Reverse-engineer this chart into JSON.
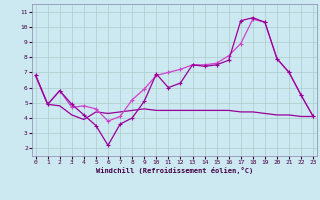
{
  "xlabel": "Windchill (Refroidissement éolien,°C)",
  "x_ticks": [
    0,
    1,
    2,
    3,
    4,
    5,
    6,
    7,
    8,
    9,
    10,
    11,
    12,
    13,
    14,
    15,
    16,
    17,
    18,
    19,
    20,
    21,
    22,
    23
  ],
  "y_ticks": [
    2,
    3,
    4,
    5,
    6,
    7,
    8,
    9,
    10,
    11
  ],
  "xlim": [
    -0.3,
    23.3
  ],
  "ylim": [
    1.5,
    11.5
  ],
  "bg_color": "#cce8f0",
  "grid_color": "#aacccc",
  "line_color": "#990099",
  "line_color2": "#cc44cc",
  "line1_x": [
    0,
    1,
    2,
    3,
    4,
    5,
    6,
    7,
    8,
    9,
    10,
    11,
    12,
    13,
    14,
    15,
    16,
    17,
    18,
    19,
    20,
    21,
    22,
    23
  ],
  "line1_y": [
    6.8,
    4.9,
    5.8,
    4.9,
    4.2,
    3.5,
    2.2,
    3.6,
    4.0,
    5.1,
    6.9,
    6.0,
    6.3,
    7.5,
    7.4,
    7.5,
    7.8,
    10.4,
    10.6,
    10.3,
    7.9,
    7.0,
    5.5,
    4.1
  ],
  "line2_x": [
    0,
    1,
    2,
    3,
    4,
    5,
    6,
    7,
    8,
    9,
    10,
    11,
    12,
    13,
    14,
    15,
    16,
    17,
    18,
    19,
    20,
    21,
    22,
    23
  ],
  "line2_y": [
    6.8,
    4.9,
    5.8,
    4.7,
    4.8,
    4.6,
    3.8,
    4.1,
    5.2,
    5.9,
    6.8,
    7.0,
    7.2,
    7.5,
    7.5,
    7.6,
    8.1,
    8.9,
    10.5,
    10.3,
    7.9,
    7.0,
    5.5,
    4.1
  ],
  "line3_x": [
    0,
    1,
    2,
    3,
    4,
    5,
    6,
    7,
    8,
    9,
    10,
    11,
    12,
    13,
    14,
    15,
    16,
    17,
    18,
    19,
    20,
    21,
    22,
    23
  ],
  "line3_y": [
    6.8,
    4.9,
    4.8,
    4.2,
    3.9,
    4.4,
    4.3,
    4.4,
    4.5,
    4.6,
    4.5,
    4.5,
    4.5,
    4.5,
    4.5,
    4.5,
    4.5,
    4.4,
    4.4,
    4.3,
    4.2,
    4.2,
    4.1,
    4.1
  ]
}
